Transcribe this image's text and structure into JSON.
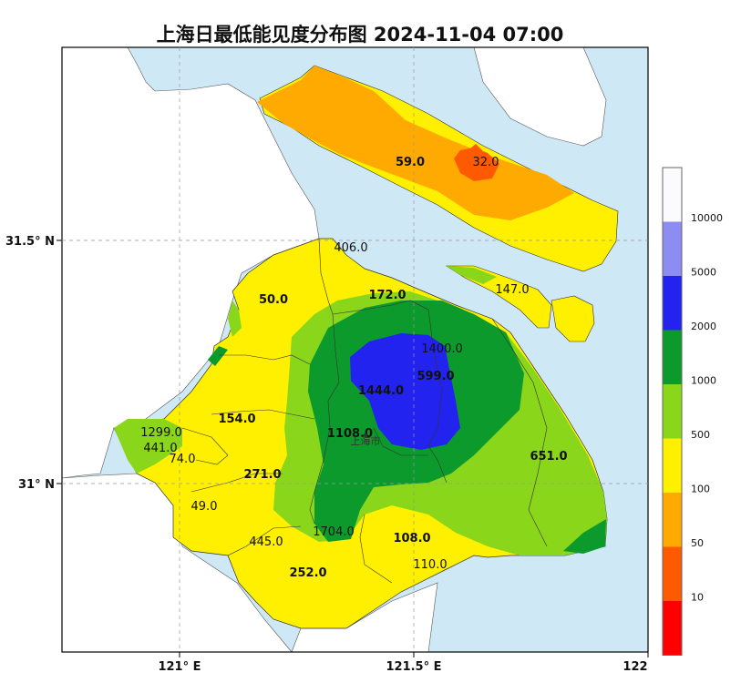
{
  "title": "上海日最低能见度分布图 2024-11-04 07:00",
  "axes": {
    "x_ticks": [
      "121° E",
      "121.5° E",
      "122"
    ],
    "y_ticks": [
      "31.5° N",
      "31° N"
    ]
  },
  "city_label": "上海市",
  "stations": [
    {
      "value": "59.0",
      "bold": true
    },
    {
      "value": "32.0",
      "bold": false
    },
    {
      "value": "406.0",
      "bold": false
    },
    {
      "value": "147.0",
      "bold": false
    },
    {
      "value": "50.0",
      "bold": true
    },
    {
      "value": "172.0",
      "bold": true
    },
    {
      "value": "1400.0",
      "bold": false
    },
    {
      "value": "599.0",
      "bold": true
    },
    {
      "value": "1444.0",
      "bold": true
    },
    {
      "value": "1108.0",
      "bold": true
    },
    {
      "value": "154.0",
      "bold": true
    },
    {
      "value": "1299.0",
      "bold": false
    },
    {
      "value": "441.0",
      "bold": false
    },
    {
      "value": "74.0",
      "bold": false
    },
    {
      "value": "271.0",
      "bold": true
    },
    {
      "value": "651.0",
      "bold": true
    },
    {
      "value": "49.0",
      "bold": false
    },
    {
      "value": "1704.0",
      "bold": false
    },
    {
      "value": "108.0",
      "bold": true
    },
    {
      "value": "445.0",
      "bold": false
    },
    {
      "value": "110.0",
      "bold": false
    },
    {
      "value": "252.0",
      "bold": true
    }
  ],
  "colorbar": {
    "labels": [
      "10000",
      "5000",
      "2000",
      "1000",
      "500",
      "100",
      "50",
      "10"
    ],
    "colors": [
      "#fbfbfe",
      "#8c8cf2",
      "#2323f0",
      "#0c9a2c",
      "#8ad61a",
      "#fff000",
      "#ffaa00",
      "#ff5a00",
      "#ff0000"
    ]
  }
}
